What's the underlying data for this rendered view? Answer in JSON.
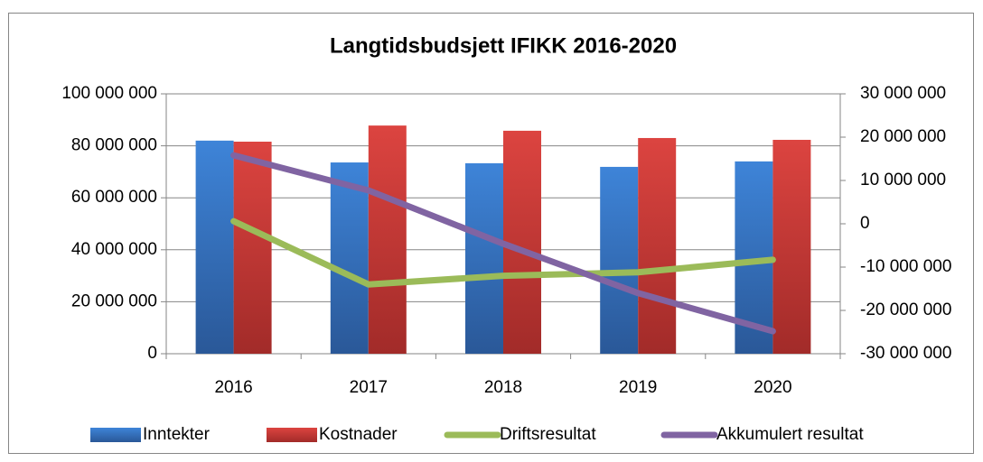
{
  "chart_data": {
    "type": "bar",
    "title": "Langtidsbudsjett IFIKK 2016-2020",
    "categories": [
      "2016",
      "2017",
      "2018",
      "2019",
      "2020"
    ],
    "series": [
      {
        "name": "Inntekter",
        "type": "bar",
        "color": "#3b7dd0",
        "values": [
          82000000,
          73600000,
          73300000,
          71900000,
          74000000
        ]
      },
      {
        "name": "Kostnader",
        "type": "bar",
        "color": "#d63f3c",
        "values": [
          81600000,
          87800000,
          85800000,
          83000000,
          82300000
        ]
      },
      {
        "name": "Driftsresultat",
        "type": "line",
        "axis": "y2",
        "color": "#9bbb59",
        "values": [
          600000,
          -14000000,
          -12000000,
          -11200000,
          -8300000
        ]
      },
      {
        "name": "Akkumulert resultat",
        "type": "line",
        "axis": "y2",
        "color": "#8064a2",
        "values": [
          15800000,
          7700000,
          -4600000,
          -16000000,
          -24800000
        ]
      }
    ],
    "ylim": [
      0,
      100000000
    ],
    "yticks": [
      0,
      {
        "value": 20000000,
        "label": "20 000 000"
      },
      {
        "value": 40000000,
        "label": "40 000 000"
      },
      {
        "value": 60000000,
        "label": "60 000 000"
      },
      {
        "value": 80000000,
        "label": "80 000 000"
      },
      {
        "value": 100000000,
        "label": "100 000 000"
      }
    ],
    "y2lim": [
      -30000000,
      30000000
    ],
    "y2ticks": [
      {
        "value": -30000000,
        "label": "-30 000 000"
      },
      {
        "value": -20000000,
        "label": "-20 000 000"
      },
      {
        "value": -10000000,
        "label": "-10 000 000"
      },
      0,
      {
        "value": 10000000,
        "label": "10 000 000"
      },
      {
        "value": 20000000,
        "label": "20 000 000"
      },
      {
        "value": 30000000,
        "label": "30 000 000"
      }
    ],
    "grid": true,
    "legend": "bottom"
  }
}
